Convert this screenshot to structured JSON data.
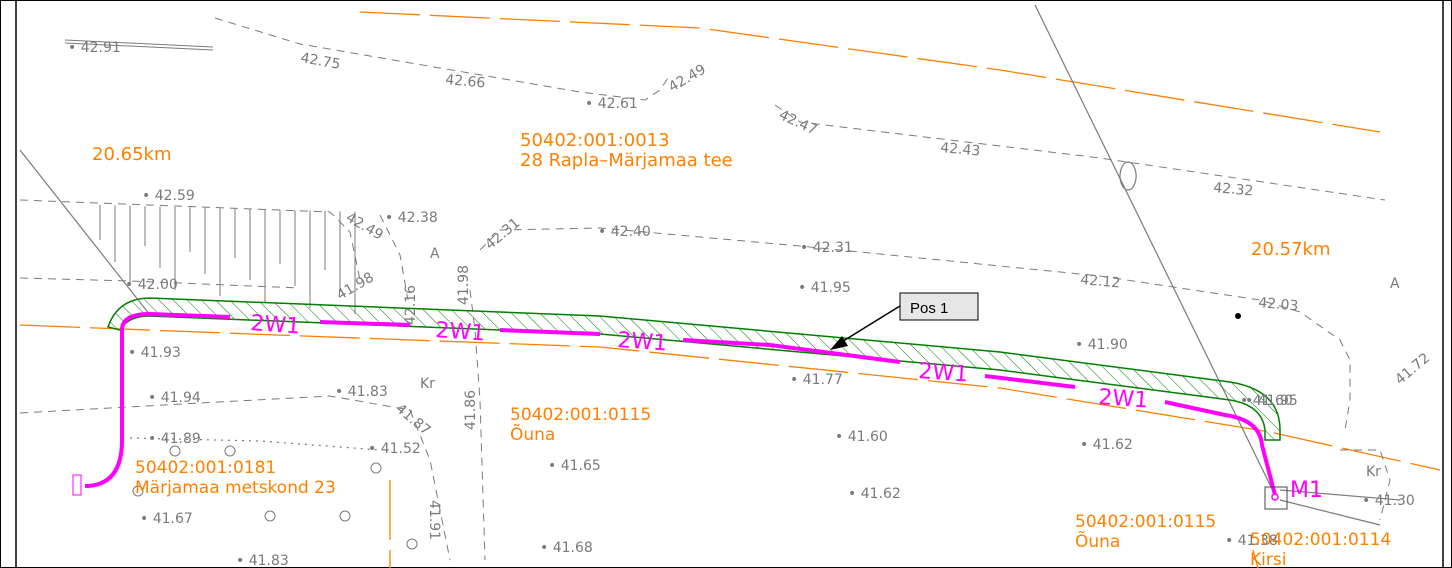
{
  "map": {
    "km_labels": [
      "20.65km",
      "20.57km"
    ],
    "parcels": [
      {
        "id": "50402:001:0013",
        "name": "28 Rapla–Märjamaa tee"
      },
      {
        "id": "50402:001:0115",
        "name": "Õuna"
      },
      {
        "id": "50402:001:0181",
        "name": "Märjamaa metskond 23"
      },
      {
        "id": "50402:001:0115",
        "name": "Õuna"
      },
      {
        "id": "50402:001:0114",
        "name": "Kirsi"
      }
    ],
    "cable_label": "2W1",
    "callout": "Pos 1",
    "marker": "M1",
    "zone_letters": [
      "A",
      "A",
      "Kr",
      "Kr"
    ],
    "elevations": [
      "42.91",
      "42.75",
      "42.66",
      "42.61",
      "42.49",
      "42.47",
      "42.43",
      "42.32",
      "42.59",
      "42.49",
      "42.38",
      "42.31",
      "42.40",
      "42.31",
      "42.12",
      "42.03",
      "42.00",
      "41.98",
      "42.16",
      "41.98",
      "41.95",
      "41.93",
      "41.90",
      "41.95",
      "41.72",
      "41.77",
      "41.94",
      "41.83",
      "41.87",
      "41.86",
      "41.89",
      "41.52",
      "41.60",
      "41.60",
      "41.62",
      "41.65",
      "41.62",
      "41.67",
      "41.91",
      "41.30",
      "41.83",
      "41.68",
      "41.38"
    ],
    "colors": {
      "road": "#ff8000",
      "cable": "#ff00ff",
      "hatch": "#008000",
      "terrain": "#7a7a7a"
    }
  }
}
